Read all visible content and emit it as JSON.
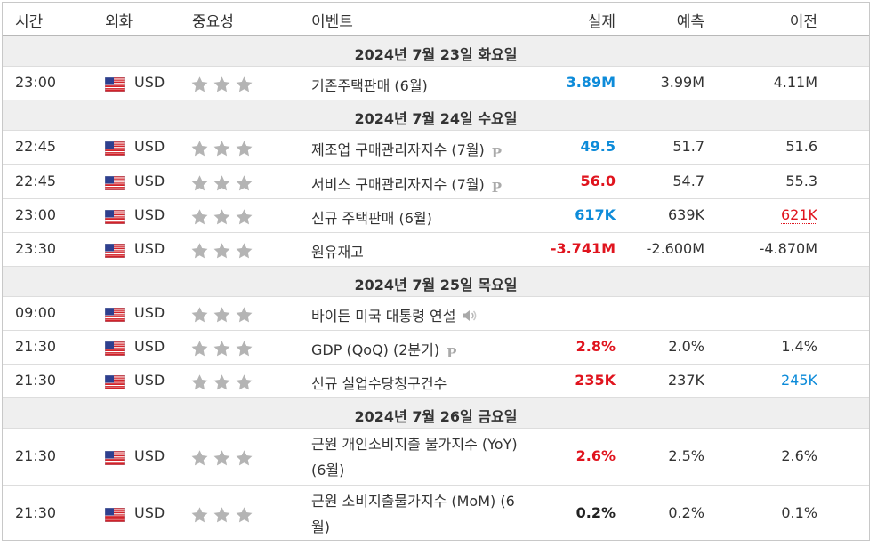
{
  "header": {
    "time": "시간",
    "currency": "외화",
    "importance": "중요성",
    "event": "이벤트",
    "actual": "실제",
    "forecast": "예측",
    "previous": "이전"
  },
  "colors": {
    "better": "#0d8bd9",
    "worse": "#e0141e",
    "star": "#b4b4b4",
    "date_bg": "#efefef"
  },
  "dates": [
    "2024년 7월 23일 화요일",
    "2024년 7월 24일 수요일",
    "2024년 7월 25일 목요일",
    "2024년 7월 26일 금요일"
  ],
  "events": [
    {
      "time": "23:00",
      "currency": "USD",
      "flag": "us-flag-icon",
      "stars": 3,
      "event": "기존주택판매 (6월)",
      "actual": "3.89M",
      "actual_tone": "better",
      "forecast": "3.99M",
      "previous": "4.11M"
    },
    {
      "time": "22:45",
      "currency": "USD",
      "flag": "us-flag-icon",
      "stars": 3,
      "event": "제조업 구매관리자지수 (7월)",
      "badge": "P",
      "actual": "49.5",
      "actual_tone": "better",
      "forecast": "51.7",
      "previous": "51.6"
    },
    {
      "time": "22:45",
      "currency": "USD",
      "flag": "us-flag-icon",
      "stars": 3,
      "event": "서비스 구매관리자지수 (7월)",
      "badge": "P",
      "actual": "56.0",
      "actual_tone": "worse",
      "forecast": "54.7",
      "previous": "55.3"
    },
    {
      "time": "23:00",
      "currency": "USD",
      "flag": "us-flag-icon",
      "stars": 3,
      "event": "신규 주택판매 (6월)",
      "actual": "617K",
      "actual_tone": "better",
      "forecast": "639K",
      "previous": "621K",
      "previous_revised": "down"
    },
    {
      "time": "23:30",
      "currency": "USD",
      "flag": "us-flag-icon",
      "stars": 3,
      "event": "원유재고",
      "actual": "-3.741M",
      "actual_tone": "worse",
      "forecast": "-2.600M",
      "previous": "-4.870M"
    },
    {
      "time": "09:00",
      "currency": "USD",
      "flag": "us-flag-icon",
      "stars": 3,
      "event": "바이든 미국 대통령 연설",
      "icon": "speaker-icon",
      "actual": "",
      "forecast": "",
      "previous": ""
    },
    {
      "time": "21:30",
      "currency": "USD",
      "flag": "us-flag-icon",
      "stars": 3,
      "event": "GDP (QoQ) (2분기)",
      "badge": "P",
      "actual": "2.8%",
      "actual_tone": "worse",
      "forecast": "2.0%",
      "previous": "1.4%"
    },
    {
      "time": "21:30",
      "currency": "USD",
      "flag": "us-flag-icon",
      "stars": 3,
      "event": "신규 실업수당청구건수",
      "actual": "235K",
      "actual_tone": "worse",
      "forecast": "237K",
      "previous": "245K",
      "previous_revised": "up"
    },
    {
      "time": "21:30",
      "currency": "USD",
      "flag": "us-flag-icon",
      "stars": 3,
      "event": "근원 개인소비지출 물가지수 (YoY) (6월)",
      "actual": "2.6%",
      "actual_tone": "worse",
      "forecast": "2.5%",
      "previous": "2.6%"
    },
    {
      "time": "21:30",
      "currency": "USD",
      "flag": "us-flag-icon",
      "stars": 3,
      "event": "근원 소비지출물가지수 (MoM) (6월)",
      "actual": "0.2%",
      "actual_tone": "neutral",
      "forecast": "0.2%",
      "previous": "0.1%"
    }
  ]
}
